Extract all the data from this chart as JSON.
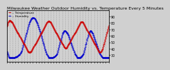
{
  "title": "Milwaukee Weather Outdoor Humidity vs. Temperature Every 5 Minutes",
  "legend_humidity": "-- Humidity",
  "legend_temp": "-- Temperature",
  "bg_color": "#d0d0d0",
  "plot_bg_color": "#d0d0d0",
  "red_color": "#cc0000",
  "blue_color": "#0000cc",
  "ylim": [
    20,
    100
  ],
  "y_ticks_right": [
    30,
    40,
    50,
    60,
    70,
    80,
    90
  ],
  "title_fontsize": 4.5,
  "tick_fontsize": 3.5,
  "humidity_data": [
    36,
    34,
    32,
    30,
    28,
    27,
    26,
    26,
    26,
    26,
    26,
    26,
    26,
    26,
    26,
    26,
    26,
    26,
    26,
    26,
    26,
    26,
    26,
    27,
    27,
    27,
    27,
    27,
    28,
    28,
    28,
    29,
    29,
    30,
    30,
    31,
    32,
    33,
    34,
    35,
    36,
    37,
    39,
    41,
    43,
    45,
    47,
    49,
    51,
    53,
    55,
    57,
    59,
    61,
    63,
    65,
    67,
    69,
    71,
    73,
    75,
    77,
    78,
    80,
    82,
    83,
    84,
    85,
    86,
    87,
    87,
    88,
    88,
    88,
    88,
    88,
    88,
    87,
    87,
    86,
    85,
    84,
    83,
    82,
    80,
    79,
    77,
    76,
    74,
    73,
    71,
    70,
    68,
    67,
    65,
    63,
    61,
    59,
    57,
    55,
    53,
    51,
    49,
    47,
    45,
    43,
    41,
    39,
    38,
    36,
    35,
    33,
    32,
    30,
    29,
    28,
    27,
    26,
    26,
    26,
    26,
    26,
    26,
    26,
    26,
    26,
    26,
    26,
    26,
    26,
    27,
    27,
    27,
    27,
    28,
    28,
    29,
    29,
    30,
    31,
    32,
    33,
    35,
    37,
    39,
    41,
    43,
    45,
    47,
    50,
    52,
    54,
    56,
    58,
    60,
    62,
    64,
    65,
    66,
    67,
    68,
    68,
    68,
    68,
    68,
    67,
    67,
    66,
    65,
    64,
    63,
    62,
    61,
    60,
    58,
    57,
    55,
    54,
    52,
    50,
    49,
    47,
    45,
    44,
    42,
    41,
    39,
    38,
    36,
    35,
    33,
    32,
    31,
    30,
    29,
    28,
    27,
    26,
    26,
    26,
    26,
    26,
    26,
    26,
    26,
    26,
    26,
    27,
    27,
    28,
    28,
    29,
    30,
    31,
    32,
    33,
    35,
    37,
    39,
    41,
    43,
    46,
    48,
    50,
    53,
    55,
    57,
    59,
    61,
    63,
    65,
    66,
    67,
    68,
    68,
    68,
    68,
    67,
    66,
    65,
    64,
    63,
    61,
    60,
    58,
    57,
    55,
    54,
    52,
    51,
    49,
    47,
    46,
    44,
    43,
    41,
    40,
    38,
    37,
    35,
    34,
    33,
    32,
    30,
    29,
    28,
    27,
    27,
    26,
    26,
    26,
    26,
    26,
    26,
    26,
    26,
    26,
    26,
    26,
    26,
    26,
    26,
    26,
    26,
    26,
    26,
    26
  ],
  "temp_data": [
    75,
    77,
    79,
    81,
    82,
    83,
    84,
    84,
    84,
    84,
    83,
    83,
    82,
    82,
    81,
    80,
    79,
    78,
    77,
    76,
    75,
    74,
    73,
    72,
    71,
    70,
    69,
    68,
    67,
    66,
    65,
    64,
    63,
    62,
    61,
    60,
    59,
    58,
    57,
    56,
    55,
    54,
    53,
    52,
    51,
    50,
    49,
    48,
    47,
    46,
    45,
    44,
    43,
    42,
    41,
    40,
    39,
    38,
    37,
    36,
    36,
    35,
    35,
    35,
    35,
    35,
    35,
    36,
    36,
    37,
    38,
    39,
    40,
    41,
    42,
    43,
    44,
    45,
    46,
    47,
    48,
    49,
    50,
    51,
    52,
    53,
    54,
    55,
    56,
    57,
    58,
    59,
    60,
    61,
    62,
    63,
    64,
    65,
    66,
    67,
    68,
    69,
    70,
    71,
    72,
    73,
    74,
    75,
    76,
    77,
    78,
    79,
    80,
    81,
    82,
    83,
    83,
    83,
    83,
    83,
    82,
    82,
    81,
    80,
    79,
    78,
    77,
    76,
    75,
    74,
    73,
    72,
    71,
    70,
    69,
    68,
    67,
    66,
    65,
    64,
    63,
    62,
    61,
    60,
    59,
    58,
    57,
    56,
    55,
    54,
    53,
    52,
    51,
    50,
    49,
    48,
    47,
    46,
    45,
    44,
    43,
    42,
    42,
    41,
    41,
    41,
    41,
    41,
    42,
    43,
    44,
    45,
    46,
    47,
    48,
    49,
    50,
    51,
    52,
    53,
    54,
    55,
    56,
    57,
    58,
    59,
    60,
    61,
    62,
    63,
    64,
    65,
    66,
    67,
    68,
    69,
    70,
    71,
    72,
    73,
    74,
    75,
    76,
    77,
    78,
    79,
    80,
    81,
    82,
    82,
    82,
    82,
    82,
    81,
    80,
    79,
    78,
    77,
    76,
    75,
    74,
    73,
    72,
    71,
    70,
    69,
    68,
    67,
    66,
    65,
    64,
    63,
    62,
    61,
    60,
    59,
    58,
    57,
    56,
    55,
    54,
    53,
    52,
    51,
    50,
    49,
    48,
    47,
    46,
    45,
    44,
    43,
    42,
    41,
    40,
    39,
    38,
    37,
    36,
    35,
    35,
    35,
    35,
    35,
    36,
    37,
    38,
    39,
    40,
    42,
    44,
    46,
    48,
    50,
    52,
    54,
    56,
    58,
    60,
    62,
    64,
    66,
    68,
    70,
    72,
    74,
    76
  ]
}
